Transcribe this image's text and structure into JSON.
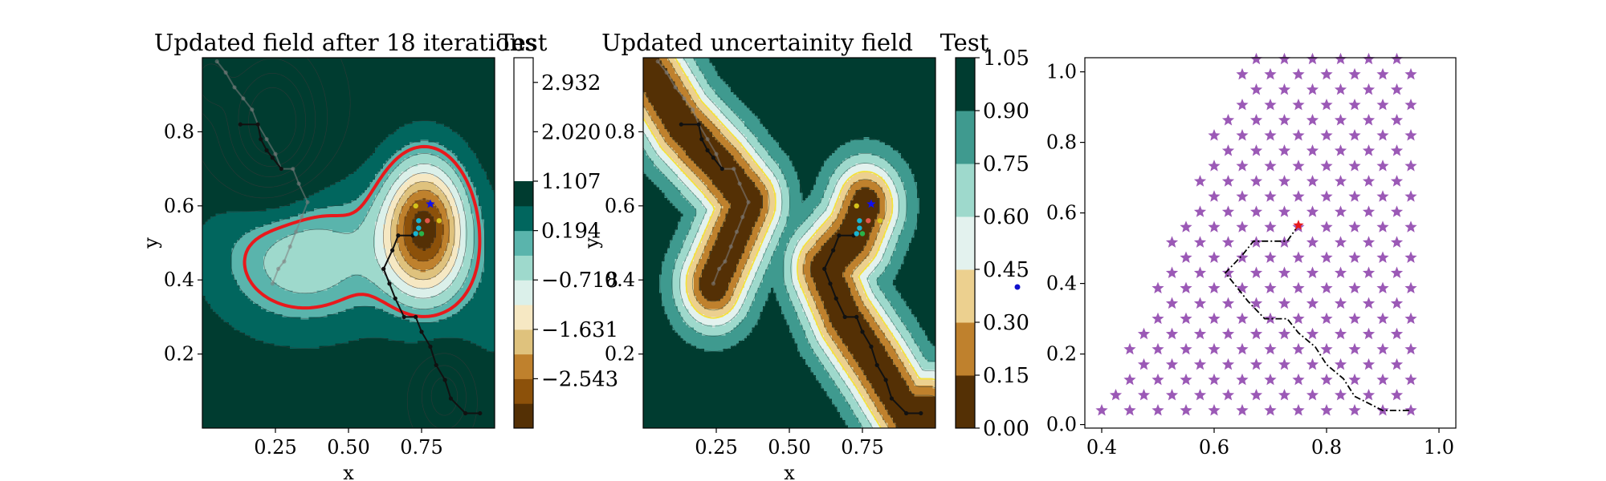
{
  "chart_data": [
    {
      "type": "contour",
      "title": "Updated field after 18 iterations",
      "xlabel": "x",
      "ylabel": "y",
      "xlim": [
        0.0,
        1.0
      ],
      "ylim": [
        0.0,
        1.0
      ],
      "xticks": [
        "0.25",
        "0.50",
        "0.75"
      ],
      "xtick_values": [
        0.25,
        0.5,
        0.75
      ],
      "yticks": [
        "0.2",
        "0.4",
        "0.6",
        "0.8"
      ],
      "ytick_values": [
        0.2,
        0.4,
        0.6,
        0.8
      ],
      "colorbar": {
        "label": "Test",
        "ticks": [
          "2.932",
          "2.020",
          "1.107",
          "0.194",
          "−0.718",
          "−1.631",
          "−2.543"
        ],
        "tick_values": [
          2.932,
          2.02,
          1.107,
          0.194,
          -0.718,
          -1.631,
          -2.543
        ],
        "levels": [
          -3.455,
          -2.999,
          -2.543,
          -2.087,
          -1.631,
          -1.175,
          -0.718,
          -0.262,
          0.194,
          0.651,
          1.107,
          1.563,
          2.02,
          2.476,
          2.932,
          3.388
        ],
        "colors": [
          "#543005",
          "#8c510a",
          "#bf812d",
          "#dfc27d",
          "#f6e8c3",
          "#dbf0ea",
          "#9ed9cc",
          "#5ab4ac",
          "#01665e",
          "#003c30"
        ]
      },
      "highlight_contour": {
        "level": 0.0,
        "color": "#e8191c"
      },
      "paths": [
        {
          "name": "faded",
          "color": "#7f7f7f",
          "points": [
            [
              0.05,
              0.99
            ],
            [
              0.08,
              0.96
            ],
            [
              0.11,
              0.92
            ],
            [
              0.14,
              0.89
            ],
            [
              0.17,
              0.86
            ],
            [
              0.19,
              0.82
            ],
            [
              0.22,
              0.78
            ],
            [
              0.25,
              0.74
            ],
            [
              0.27,
              0.7
            ],
            [
              0.31,
              0.7
            ],
            [
              0.33,
              0.66
            ],
            [
              0.36,
              0.61
            ],
            [
              0.34,
              0.57
            ],
            [
              0.32,
              0.53
            ],
            [
              0.3,
              0.49
            ],
            [
              0.28,
              0.45
            ],
            [
              0.26,
              0.43
            ],
            [
              0.24,
              0.39
            ]
          ]
        },
        {
          "name": "current",
          "color": "#111111",
          "points": [
            [
              0.13,
              0.82
            ],
            [
              0.19,
              0.82
            ],
            [
              0.2,
              0.78
            ],
            [
              0.22,
              0.75
            ],
            [
              0.24,
              0.73
            ],
            [
              0.27,
              0.7
            ]
          ]
        },
        {
          "name": "current-2",
          "color": "#111111",
          "points": [
            [
              0.72,
              0.52
            ],
            [
              0.67,
              0.52
            ],
            [
              0.65,
              0.48
            ],
            [
              0.62,
              0.43
            ],
            [
              0.64,
              0.39
            ],
            [
              0.66,
              0.35
            ],
            [
              0.69,
              0.3
            ],
            [
              0.73,
              0.3
            ],
            [
              0.75,
              0.26
            ],
            [
              0.78,
              0.22
            ],
            [
              0.8,
              0.17
            ],
            [
              0.83,
              0.13
            ],
            [
              0.85,
              0.08
            ],
            [
              0.9,
              0.04
            ],
            [
              0.95,
              0.04
            ]
          ]
        }
      ],
      "markers": [
        {
          "x": 0.78,
          "y": 0.605,
          "color": "#1010ee",
          "shape": "star"
        },
        {
          "x": 0.73,
          "y": 0.6,
          "color": "#d4c21a"
        },
        {
          "x": 0.81,
          "y": 0.56,
          "color": "#d4c21a"
        },
        {
          "x": 0.74,
          "y": 0.56,
          "color": "#19b4d0"
        },
        {
          "x": 0.77,
          "y": 0.56,
          "color": "#e2564a"
        },
        {
          "x": 0.74,
          "y": 0.54,
          "color": "#19b4d0"
        },
        {
          "x": 0.73,
          "y": 0.525,
          "color": "#19b4d0"
        },
        {
          "x": 0.75,
          "y": 0.525,
          "color": "#29b44a"
        }
      ]
    },
    {
      "type": "contour",
      "title": "Updated uncertainity field",
      "xlabel": "x",
      "ylabel": "y",
      "xlim": [
        0.0,
        1.0
      ],
      "ylim": [
        0.0,
        1.0
      ],
      "xticks": [
        "0.25",
        "0.50",
        "0.75"
      ],
      "xtick_values": [
        0.25,
        0.5,
        0.75
      ],
      "yticks": [
        "0.2",
        "0.4",
        "0.6",
        "0.8"
      ],
      "ytick_values": [
        0.2,
        0.4,
        0.6,
        0.8
      ],
      "colorbar": {
        "label": "Test",
        "ticks": [
          "1.05",
          "0.90",
          "0.75",
          "0.60",
          "0.45",
          "0.30",
          "0.15",
          "0.00"
        ],
        "tick_values": [
          1.05,
          0.9,
          0.75,
          0.6,
          0.45,
          0.3,
          0.15,
          0.0
        ],
        "levels": [
          0.0,
          0.15,
          0.3,
          0.45,
          0.6,
          0.75,
          0.9,
          1.05
        ],
        "colors": [
          "#543005",
          "#bf812d",
          "#ecd08f",
          "#e3f2ee",
          "#9ed9cc",
          "#3f9a8f",
          "#003c30"
        ]
      },
      "highlight_contour": {
        "level": 0.45,
        "color": "#f4e23a"
      },
      "paths": [
        {
          "name": "faded",
          "color": "#7f7f7f",
          "points": [
            [
              0.05,
              0.99
            ],
            [
              0.08,
              0.96
            ],
            [
              0.11,
              0.92
            ],
            [
              0.14,
              0.89
            ],
            [
              0.17,
              0.86
            ],
            [
              0.19,
              0.82
            ],
            [
              0.22,
              0.78
            ],
            [
              0.25,
              0.74
            ],
            [
              0.27,
              0.7
            ],
            [
              0.31,
              0.7
            ],
            [
              0.33,
              0.66
            ],
            [
              0.36,
              0.61
            ],
            [
              0.34,
              0.57
            ],
            [
              0.32,
              0.53
            ],
            [
              0.3,
              0.49
            ],
            [
              0.28,
              0.45
            ],
            [
              0.26,
              0.43
            ],
            [
              0.24,
              0.39
            ]
          ]
        },
        {
          "name": "current",
          "color": "#111111",
          "points": [
            [
              0.13,
              0.82
            ],
            [
              0.19,
              0.82
            ],
            [
              0.2,
              0.78
            ],
            [
              0.22,
              0.75
            ],
            [
              0.24,
              0.73
            ],
            [
              0.27,
              0.7
            ]
          ]
        },
        {
          "name": "current-2",
          "color": "#111111",
          "points": [
            [
              0.72,
              0.52
            ],
            [
              0.67,
              0.52
            ],
            [
              0.65,
              0.48
            ],
            [
              0.62,
              0.43
            ],
            [
              0.64,
              0.39
            ],
            [
              0.66,
              0.35
            ],
            [
              0.69,
              0.3
            ],
            [
              0.73,
              0.3
            ],
            [
              0.75,
              0.26
            ],
            [
              0.78,
              0.22
            ],
            [
              0.8,
              0.17
            ],
            [
              0.83,
              0.13
            ],
            [
              0.85,
              0.08
            ],
            [
              0.9,
              0.04
            ],
            [
              0.95,
              0.04
            ]
          ]
        }
      ],
      "markers": [
        {
          "x": 0.78,
          "y": 0.605,
          "color": "#1010ee",
          "shape": "star"
        },
        {
          "x": 0.73,
          "y": 0.6,
          "color": "#d4c21a"
        },
        {
          "x": 0.81,
          "y": 0.56,
          "color": "#d4c21a"
        },
        {
          "x": 0.74,
          "y": 0.56,
          "color": "#19b4d0"
        },
        {
          "x": 0.77,
          "y": 0.56,
          "color": "#e2564a"
        },
        {
          "x": 0.74,
          "y": 0.54,
          "color": "#19b4d0"
        },
        {
          "x": 0.73,
          "y": 0.525,
          "color": "#19b4d0"
        },
        {
          "x": 0.75,
          "y": 0.525,
          "color": "#29b44a"
        }
      ]
    },
    {
      "type": "scatter",
      "title": "",
      "xlabel": "",
      "ylabel": "",
      "xlim": [
        0.37,
        1.03
      ],
      "ylim": [
        -0.01,
        1.04
      ],
      "xticks": [
        "0.4",
        "0.6",
        "0.8",
        "1.0"
      ],
      "xtick_values": [
        0.4,
        0.6,
        0.8,
        1.0
      ],
      "yticks": [
        "0.0",
        "0.2",
        "0.4",
        "0.6",
        "0.8",
        "1.0"
      ],
      "ytick_values": [
        0.0,
        0.2,
        0.4,
        0.6,
        0.8,
        1.0
      ],
      "grid": {
        "dx": 0.05,
        "dy": 0.0433,
        "rows": 24,
        "y0": 0.04,
        "right_x": 0.95,
        "top_left_x": 0.65,
        "bottom_left_x": 0.4,
        "color": "#9b59b6",
        "shape": "star"
      },
      "start_point": {
        "x": 0.25,
        "y": 0.39,
        "color": "#1010cc"
      },
      "goal_point": {
        "x": 0.75,
        "y": 0.565,
        "color": "#e8191c",
        "shape": "star"
      },
      "path": {
        "color": "#000000",
        "style": "dash-dot",
        "points": [
          [
            0.75,
            0.565
          ],
          [
            0.73,
            0.52
          ],
          [
            0.67,
            0.52
          ],
          [
            0.65,
            0.48
          ],
          [
            0.62,
            0.43
          ],
          [
            0.64,
            0.39
          ],
          [
            0.66,
            0.35
          ],
          [
            0.69,
            0.3
          ],
          [
            0.73,
            0.3
          ],
          [
            0.75,
            0.26
          ],
          [
            0.78,
            0.22
          ],
          [
            0.8,
            0.17
          ],
          [
            0.83,
            0.13
          ],
          [
            0.85,
            0.08
          ],
          [
            0.9,
            0.04
          ],
          [
            0.95,
            0.04
          ]
        ]
      }
    }
  ]
}
